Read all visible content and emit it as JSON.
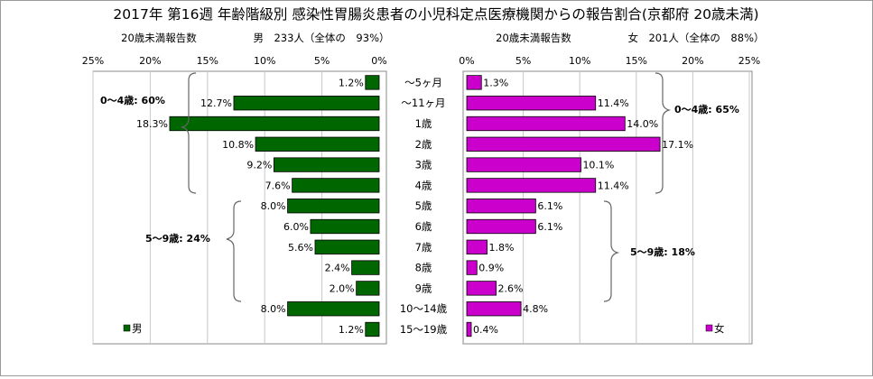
{
  "title": "2017年 第16週 年齢階級別 感染性胃腸炎患者の小児科定点医療機関からの報告割合(京都府 20歳未満)",
  "chart_data": {
    "type": "bar",
    "title": "2017年 第16週 年齢階級別 感染性胃腸炎患者の小児科定点医療機関からの報告割合(京都府 20歳未満)",
    "categories": [
      "～5ヶ月",
      "～11ヶ月",
      "1歳",
      "2歳",
      "3歳",
      "4歳",
      "5歳",
      "6歳",
      "7歳",
      "8歳",
      "9歳",
      "10～14歳",
      "15～19歳"
    ],
    "xlim": [
      0,
      25
    ],
    "ticks": [
      "0%",
      "5%",
      "10%",
      "15%",
      "20%",
      "25%"
    ],
    "series": [
      {
        "name": "男",
        "header": "20歳未満報告数",
        "count_label": "男　233人（全体の　93%）",
        "color": "#006600",
        "values": [
          1.2,
          12.7,
          18.3,
          10.8,
          9.2,
          7.6,
          8.0,
          6.0,
          5.6,
          2.4,
          2.0,
          8.0,
          1.2
        ],
        "value_labels": [
          "1.2%",
          "12.7%",
          "18.3%",
          "10.8%",
          "9.2%",
          "7.6%",
          "8.0%",
          "6.0%",
          "5.6%",
          "2.4%",
          "2.0%",
          "8.0%",
          "1.2%"
        ]
      },
      {
        "name": "女",
        "header": "20歳未満報告数",
        "count_label": "女　201人（全体の　88%）",
        "color": "#cc00cc",
        "values": [
          1.3,
          11.4,
          14.0,
          17.1,
          10.1,
          11.4,
          6.1,
          6.1,
          1.8,
          0.9,
          2.6,
          4.8,
          0.4
        ],
        "value_labels": [
          "1.3%",
          "11.4%",
          "14.0%",
          "17.1%",
          "10.1%",
          "11.4%",
          "6.1%",
          "6.1%",
          "1.8%",
          "0.9%",
          "2.6%",
          "4.8%",
          "0.4%"
        ]
      }
    ],
    "annotations": {
      "male_0_4": "0～4歳: 60%",
      "male_5_9": "5～9歳: 24%",
      "female_0_4": "0～4歳: 65%",
      "female_5_9": "5～9歳: 18%"
    },
    "grid": true,
    "legend": "bottom-left (male panel), bottom-right (female panel)"
  }
}
